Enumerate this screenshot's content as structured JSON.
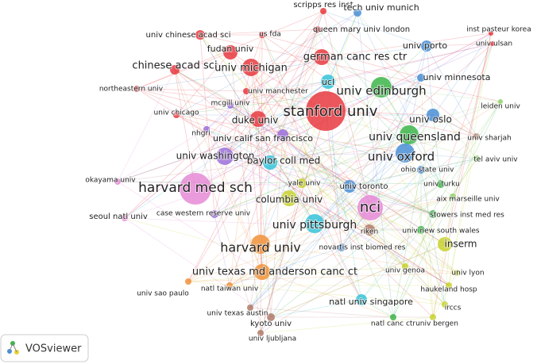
{
  "nodes": [
    {
      "label": "scripps res inst"
    },
    {
      "label": "tech univ munich"
    },
    {
      "label": "queen mary univ london"
    },
    {
      "label": "inst pasteur korea"
    },
    {
      "label": "univ chinese acad sci"
    },
    {
      "label": "us fda"
    },
    {
      "label": "fudan univ"
    },
    {
      "label": "univ porto"
    },
    {
      "label": "univ ulsan"
    },
    {
      "label": "german canc res ctr"
    },
    {
      "label": "chinese acad sci"
    },
    {
      "label": "univ michigan"
    },
    {
      "label": "univ minnesota"
    },
    {
      "label": "northeastern univ"
    },
    {
      "label": "univ manchester"
    },
    {
      "label": "univ edinburgh"
    },
    {
      "label": "ucl"
    },
    {
      "label": "mcgill univ"
    },
    {
      "label": "leiden univ"
    },
    {
      "label": "stanford univ"
    },
    {
      "label": "univ chicago"
    },
    {
      "label": "duke univ"
    },
    {
      "label": "univ oslo"
    },
    {
      "label": "nhgri"
    },
    {
      "label": "univ calif san francisco"
    },
    {
      "label": "univ queensland"
    },
    {
      "label": "univ sharjah"
    },
    {
      "label": "univ washington"
    },
    {
      "label": "baylor coll med"
    },
    {
      "label": "univ oxford"
    },
    {
      "label": "tel aviv univ"
    },
    {
      "label": "ohio state univ"
    },
    {
      "label": "yale univ"
    },
    {
      "label": "univ turku"
    },
    {
      "label": "harvard med sch"
    },
    {
      "label": "okayama univ"
    },
    {
      "label": "univ toronto"
    },
    {
      "label": "columbia univ"
    },
    {
      "label": "aix marseille univ"
    },
    {
      "label": "nci"
    },
    {
      "label": "seoul natl univ"
    },
    {
      "label": "case western reserve univ"
    },
    {
      "label": "stowers inst med res"
    },
    {
      "label": "univ pittsburgh"
    },
    {
      "label": "riken"
    },
    {
      "label": "univ new south wales"
    },
    {
      "label": "harvard univ"
    },
    {
      "label": "inserm"
    },
    {
      "label": "novartis inst biomed res"
    },
    {
      "label": "univ texas md anderson canc ct"
    },
    {
      "label": "univ genoa"
    },
    {
      "label": "univ lyon"
    },
    {
      "label": "natl taiwan univ"
    },
    {
      "label": "univ sao paulo"
    },
    {
      "label": "natl univ singapore"
    },
    {
      "label": "haukeland hosp"
    },
    {
      "label": "univ texas austin"
    },
    {
      "label": "irccs"
    },
    {
      "label": "kyoto univ"
    },
    {
      "label": "natl canc ctr"
    },
    {
      "label": "univ bergen"
    },
    {
      "label": "univ ljubljana"
    }
  ],
  "logo": {
    "text": "VOSviewer"
  }
}
